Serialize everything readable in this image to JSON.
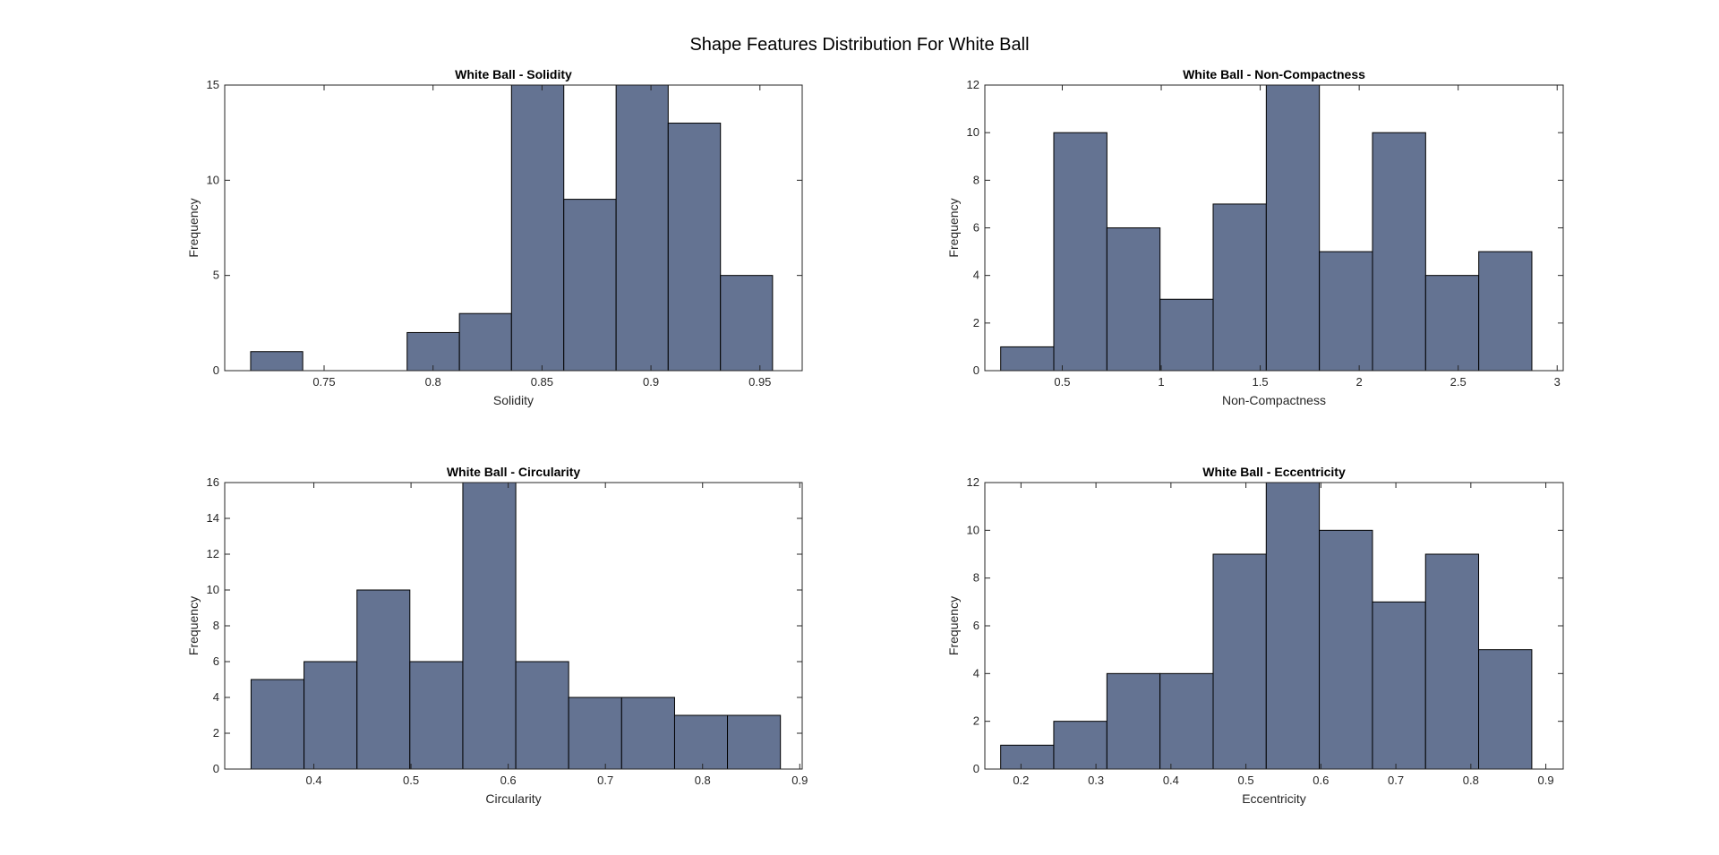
{
  "figure": {
    "suptitle": "Shape Features Distribution For White Ball",
    "bar_color": "#647392",
    "edge_color": "#000000"
  },
  "chart_data": [
    {
      "type": "bar",
      "title": "White Ball - Solidity",
      "xlabel": "Solidity",
      "ylabel": "Frequency",
      "xlim": [
        0.7044,
        0.9694
      ],
      "ylim": [
        0,
        15
      ],
      "xticks": [
        0.75,
        0.8,
        0.85,
        0.9,
        0.95
      ],
      "xtick_labels": [
        "0.75",
        "0.8",
        "0.85",
        "0.9",
        "0.95"
      ],
      "yticks": [
        0,
        5,
        10,
        15
      ],
      "ytick_labels": [
        "0",
        "5",
        "10",
        "15"
      ],
      "bins": [
        {
          "x0": 0.7163,
          "x1": 0.7402,
          "value": 1
        },
        {
          "x0": 0.7402,
          "x1": 0.7642,
          "value": 0
        },
        {
          "x0": 0.7642,
          "x1": 0.7881,
          "value": 0
        },
        {
          "x0": 0.7881,
          "x1": 0.8121,
          "value": 2
        },
        {
          "x0": 0.8121,
          "x1": 0.836,
          "value": 3
        },
        {
          "x0": 0.836,
          "x1": 0.86,
          "value": 15
        },
        {
          "x0": 0.86,
          "x1": 0.884,
          "value": 9
        },
        {
          "x0": 0.884,
          "x1": 0.9079,
          "value": 15
        },
        {
          "x0": 0.9079,
          "x1": 0.9319,
          "value": 13
        },
        {
          "x0": 0.9319,
          "x1": 0.9558,
          "value": 5
        }
      ]
    },
    {
      "type": "bar",
      "title": "White Ball - Non-Compactness",
      "xlabel": "Non-Compactness",
      "ylabel": "Frequency",
      "xlim": [
        0.1089,
        3.0306
      ],
      "ylim": [
        0,
        12
      ],
      "xticks": [
        0.5,
        1,
        1.5,
        2,
        2.5,
        3
      ],
      "xtick_labels": [
        "0.5",
        "1",
        "1.5",
        "2",
        "2.5",
        "3"
      ],
      "yticks": [
        0,
        2,
        4,
        6,
        8,
        10,
        12
      ],
      "ytick_labels": [
        "0",
        "2",
        "4",
        "6",
        "8",
        "10",
        "12"
      ],
      "bins": [
        {
          "x0": 0.1889,
          "x1": 0.4572,
          "value": 1
        },
        {
          "x0": 0.4572,
          "x1": 0.7256,
          "value": 10
        },
        {
          "x0": 0.7256,
          "x1": 0.9939,
          "value": 6
        },
        {
          "x0": 0.9939,
          "x1": 1.2622,
          "value": 3
        },
        {
          "x0": 1.2622,
          "x1": 1.5306,
          "value": 7
        },
        {
          "x0": 1.5306,
          "x1": 1.7989,
          "value": 12
        },
        {
          "x0": 1.7989,
          "x1": 2.0672,
          "value": 5
        },
        {
          "x0": 2.0672,
          "x1": 2.3356,
          "value": 10
        },
        {
          "x0": 2.3356,
          "x1": 2.6039,
          "value": 4
        },
        {
          "x0": 2.6039,
          "x1": 2.8722,
          "value": 5
        }
      ]
    },
    {
      "type": "bar",
      "title": "White Ball - Circularity",
      "xlabel": "Circularity",
      "ylabel": "Frequency",
      "xlim": [
        0.3083,
        0.9025
      ],
      "ylim": [
        0,
        16
      ],
      "xticks": [
        0.4,
        0.5,
        0.6,
        0.7,
        0.8,
        0.9
      ],
      "xtick_labels": [
        "0.4",
        "0.5",
        "0.6",
        "0.7",
        "0.8",
        "0.9"
      ],
      "yticks": [
        0,
        2,
        4,
        6,
        8,
        10,
        12,
        14,
        16
      ],
      "ytick_labels": [
        "0",
        "2",
        "4",
        "6",
        "8",
        "10",
        "12",
        "14",
        "16"
      ],
      "bins": [
        {
          "x0": 0.3354,
          "x1": 0.3899,
          "value": 5
        },
        {
          "x0": 0.3899,
          "x1": 0.4444,
          "value": 6
        },
        {
          "x0": 0.4444,
          "x1": 0.4988,
          "value": 10
        },
        {
          "x0": 0.4988,
          "x1": 0.5533,
          "value": 6
        },
        {
          "x0": 0.5533,
          "x1": 0.6078,
          "value": 16
        },
        {
          "x0": 0.6078,
          "x1": 0.6622,
          "value": 6
        },
        {
          "x0": 0.6622,
          "x1": 0.7167,
          "value": 4
        },
        {
          "x0": 0.7167,
          "x1": 0.7712,
          "value": 4
        },
        {
          "x0": 0.7712,
          "x1": 0.8256,
          "value": 3
        },
        {
          "x0": 0.8256,
          "x1": 0.8801,
          "value": 3
        }
      ]
    },
    {
      "type": "bar",
      "title": "White Ball - Eccentricity",
      "xlabel": "Eccentricity",
      "ylabel": "Frequency",
      "xlim": [
        0.1518,
        0.9232
      ],
      "ylim": [
        0,
        12
      ],
      "xticks": [
        0.2,
        0.3,
        0.4,
        0.5,
        0.6,
        0.7,
        0.8,
        0.9
      ],
      "xtick_labels": [
        "0.2",
        "0.3",
        "0.4",
        "0.5",
        "0.6",
        "0.7",
        "0.8",
        "0.9"
      ],
      "yticks": [
        0,
        2,
        4,
        6,
        8,
        10,
        12
      ],
      "ytick_labels": [
        "0",
        "2",
        "4",
        "6",
        "8",
        "10",
        "12"
      ],
      "bins": [
        {
          "x0": 0.1729,
          "x1": 0.2437,
          "value": 1
        },
        {
          "x0": 0.2437,
          "x1": 0.3146,
          "value": 2
        },
        {
          "x0": 0.3146,
          "x1": 0.3854,
          "value": 4
        },
        {
          "x0": 0.3854,
          "x1": 0.4563,
          "value": 4
        },
        {
          "x0": 0.4563,
          "x1": 0.5271,
          "value": 9
        },
        {
          "x0": 0.5271,
          "x1": 0.5979,
          "value": 12
        },
        {
          "x0": 0.5979,
          "x1": 0.6688,
          "value": 10
        },
        {
          "x0": 0.6688,
          "x1": 0.7396,
          "value": 7
        },
        {
          "x0": 0.7396,
          "x1": 0.8104,
          "value": 9
        },
        {
          "x0": 0.8104,
          "x1": 0.8813,
          "value": 5
        }
      ]
    }
  ]
}
